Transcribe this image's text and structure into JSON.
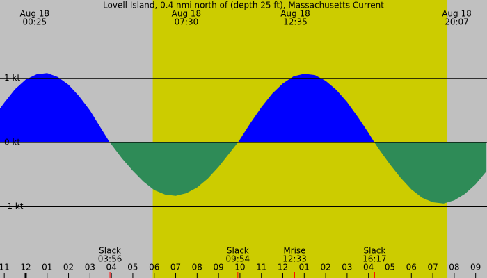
{
  "chart_data": {
    "type": "area",
    "title": "Lovell Island, 0.4 nmi north of (depth 25 ft), Massachusetts Current",
    "x": [
      -1.2,
      -1,
      -0.5,
      0,
      0.5,
      1,
      1.5,
      2,
      2.5,
      3,
      3.5,
      3.93,
      4,
      4.5,
      5,
      5.5,
      6,
      6.5,
      7,
      7.5,
      8,
      8.5,
      9,
      9.5,
      9.9,
      10,
      10.5,
      11,
      11.5,
      12,
      12.5,
      13,
      13.5,
      14,
      14.5,
      15,
      15.5,
      16,
      16.28,
      16.5,
      17,
      17.5,
      18,
      18.5,
      19,
      19.5,
      20,
      20.5,
      21,
      21.5
    ],
    "values": [
      0.53,
      0.62,
      0.83,
      0.98,
      1.06,
      1.08,
      1.02,
      0.9,
      0.72,
      0.5,
      0.23,
      0,
      -0.03,
      -0.25,
      -0.44,
      -0.61,
      -0.74,
      -0.81,
      -0.83,
      -0.79,
      -0.7,
      -0.56,
      -0.38,
      -0.17,
      0,
      0.05,
      0.31,
      0.55,
      0.76,
      0.92,
      1.03,
      1.07,
      1.05,
      0.96,
      0.82,
      0.63,
      0.4,
      0.15,
      0,
      -0.11,
      -0.34,
      -0.55,
      -0.73,
      -0.86,
      -0.93,
      -0.95,
      -0.9,
      -0.8,
      -0.65,
      -0.45
    ],
    "colors": {
      "flood": "#0000ff",
      "ebb": "#2e8b57",
      "night": "#c0c0c0",
      "day": "#cccc00"
    },
    "daylight": [
      5.93,
      19.68
    ],
    "xlim": [
      -1.2,
      21.53
    ],
    "ylim": [
      -2.11,
      2.22
    ],
    "yticks": [
      {
        "value": 1,
        "label": "1 kt"
      },
      {
        "value": 0,
        "label": "0 kt"
      },
      {
        "value": -1,
        "label": "-1 kt"
      }
    ],
    "xticks": [
      {
        "value": -1,
        "label": "11"
      },
      {
        "value": 0,
        "label": "12"
      },
      {
        "value": 1,
        "label": "01"
      },
      {
        "value": 2,
        "label": "02"
      },
      {
        "value": 3,
        "label": "03"
      },
      {
        "value": 4,
        "label": "04"
      },
      {
        "value": 5,
        "label": "05"
      },
      {
        "value": 6,
        "label": "06"
      },
      {
        "value": 7,
        "label": "07"
      },
      {
        "value": 8,
        "label": "08"
      },
      {
        "value": 9,
        "label": "09"
      },
      {
        "value": 10,
        "label": "10"
      },
      {
        "value": 11,
        "label": "11"
      },
      {
        "value": 12,
        "label": "12"
      },
      {
        "value": 13,
        "label": "01"
      },
      {
        "value": 14,
        "label": "02"
      },
      {
        "value": 15,
        "label": "03"
      },
      {
        "value": 16,
        "label": "04"
      },
      {
        "value": 17,
        "label": "05"
      },
      {
        "value": 18,
        "label": "06"
      },
      {
        "value": 19,
        "label": "07"
      },
      {
        "value": 20,
        "label": "08"
      },
      {
        "value": 21,
        "label": "09"
      }
    ],
    "top_events": [
      {
        "x": 0.417,
        "date": "Aug 18",
        "time": "00:25"
      },
      {
        "x": 7.5,
        "date": "Aug 18",
        "time": "07:30"
      },
      {
        "x": 12.583,
        "date": "Aug 18",
        "time": "12:35"
      },
      {
        "x": 20.117,
        "date": "Aug 18",
        "time": "20:07"
      }
    ],
    "bottom_events": [
      {
        "x": 3.933,
        "label": "Slack",
        "time": "03:56"
      },
      {
        "x": 9.9,
        "label": "Slack",
        "time": "09:54"
      },
      {
        "x": 12.55,
        "label": "Mrise",
        "time": "12:33"
      },
      {
        "x": 16.283,
        "label": "Slack",
        "time": "16:17"
      }
    ]
  }
}
